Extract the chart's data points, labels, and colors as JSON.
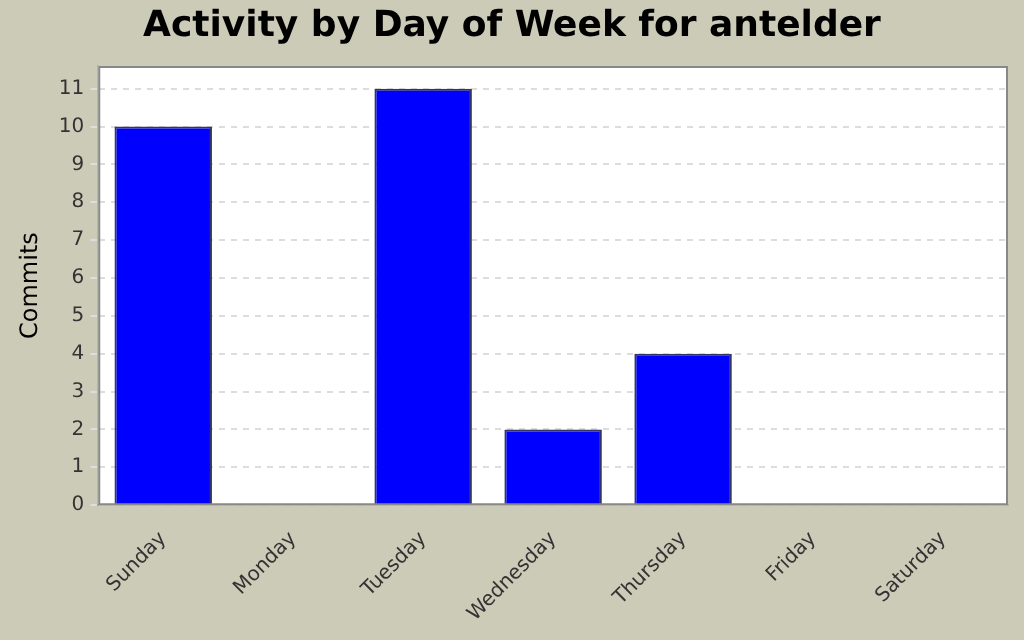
{
  "chart_data": {
    "type": "bar",
    "title": "Activity by Day of Week for antelder",
    "ylabel": "Commits",
    "categories": [
      "Sunday",
      "Monday",
      "Tuesday",
      "Wednesday",
      "Thursday",
      "Friday",
      "Saturday"
    ],
    "values": [
      10,
      0,
      11,
      2,
      4,
      0,
      0
    ],
    "color": "#0000ff",
    "ylim": [
      0,
      11.6
    ],
    "yticks": [
      0,
      1,
      2,
      3,
      4,
      5,
      6,
      7,
      8,
      9,
      10,
      11
    ],
    "grid": "y"
  }
}
